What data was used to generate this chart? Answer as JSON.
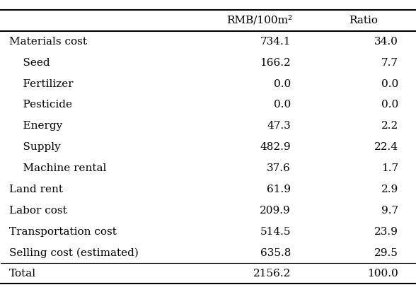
{
  "col_header": [
    "RMB/100m²",
    "Ratio"
  ],
  "rows": [
    {
      "label": "Materials cost",
      "indent": false,
      "rmb": "734.1",
      "ratio": "34.0"
    },
    {
      "label": "Seed",
      "indent": true,
      "rmb": "166.2",
      "ratio": "7.7"
    },
    {
      "label": "Fertilizer",
      "indent": true,
      "rmb": "0.0",
      "ratio": "0.0"
    },
    {
      "label": "Pesticide",
      "indent": true,
      "rmb": "0.0",
      "ratio": "0.0"
    },
    {
      "label": "Energy",
      "indent": true,
      "rmb": "47.3",
      "ratio": "2.2"
    },
    {
      "label": "Supply",
      "indent": true,
      "rmb": "482.9",
      "ratio": "22.4"
    },
    {
      "label": "Machine rental",
      "indent": true,
      "rmb": "37.6",
      "ratio": "1.7"
    },
    {
      "label": "Land rent",
      "indent": false,
      "rmb": "61.9",
      "ratio": "2.9"
    },
    {
      "label": "Labor cost",
      "indent": false,
      "rmb": "209.9",
      "ratio": "9.7"
    },
    {
      "label": "Transportation cost",
      "indent": false,
      "rmb": "514.5",
      "ratio": "23.9"
    },
    {
      "label": "Selling cost (estimated)",
      "indent": false,
      "rmb": "635.8",
      "ratio": "29.5"
    }
  ],
  "total_row": {
    "label": "Total",
    "rmb": "2156.2",
    "ratio": "100.0"
  },
  "bg_color": "#ffffff",
  "text_color": "#000000",
  "font_size": 11,
  "indent_str": "    "
}
